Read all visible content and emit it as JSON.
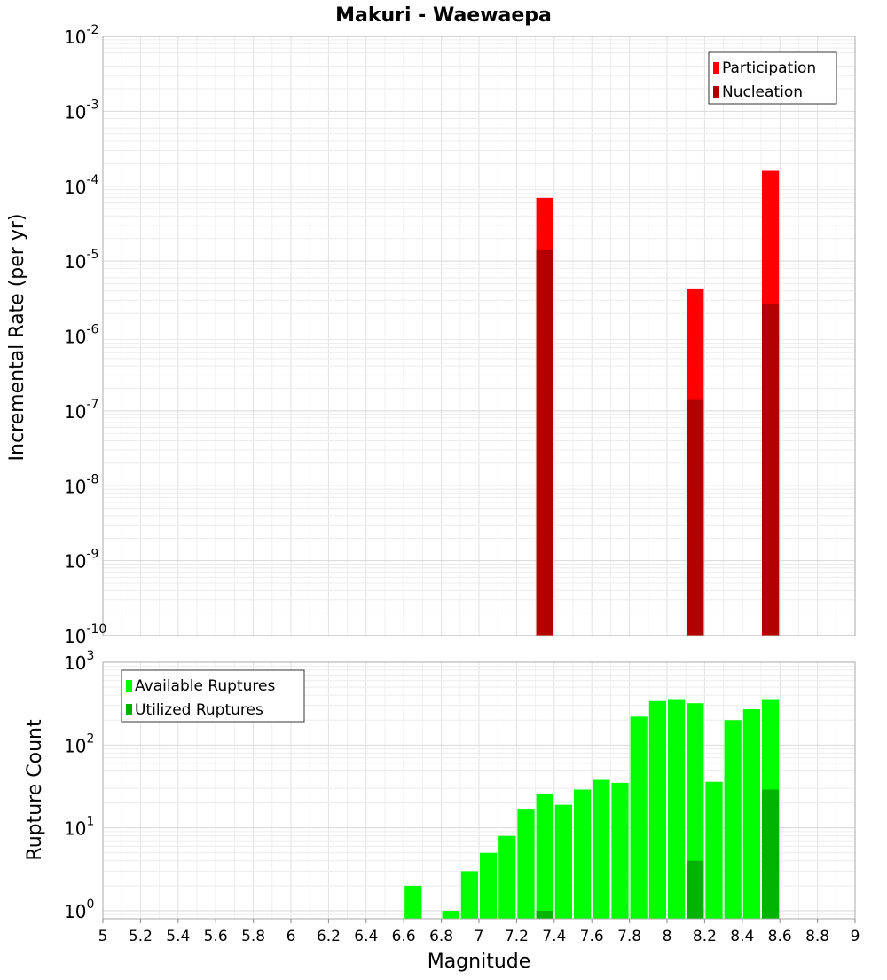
{
  "chart_data": [
    {
      "type": "bar",
      "title": "Makuri - Waewaepa",
      "xlabel": "",
      "ylabel": "Incremental Rate (per yr)",
      "y_scale": "log",
      "ylim": [
        1e-10,
        0.01
      ],
      "xlim": [
        5,
        9
      ],
      "y_tick_exponents": [
        "-2",
        "-3",
        "-4",
        "-5",
        "-6",
        "-7",
        "-8",
        "-9",
        "-10"
      ],
      "legend_position": "top-right",
      "grid": true,
      "colors": {
        "participation": "#ff0000",
        "nucleation": "#b30000"
      },
      "series": [
        {
          "name": "Participation",
          "x": [
            7.35,
            8.15,
            8.55
          ],
          "values": [
            7e-05,
            4.2e-06,
            0.00016
          ]
        },
        {
          "name": "Nucleation",
          "x": [
            7.35,
            8.15,
            8.55
          ],
          "values": [
            1.4e-05,
            1.4e-07,
            2.7e-06
          ]
        }
      ]
    },
    {
      "type": "bar",
      "title": "",
      "xlabel": "Magnitude",
      "ylabel": "Rupture Count",
      "y_scale": "log",
      "ylim": [
        0.8,
        1000
      ],
      "xlim": [
        5,
        9
      ],
      "y_tick_exponents": [
        "3",
        "2",
        "1",
        "0"
      ],
      "x_ticks": [
        "5",
        "5.2",
        "5.4",
        "5.6",
        "5.8",
        "6",
        "6.2",
        "6.4",
        "6.6",
        "6.8",
        "7",
        "7.2",
        "7.4",
        "7.6",
        "7.8",
        "8",
        "8.2",
        "8.4",
        "8.6",
        "8.8",
        "9"
      ],
      "legend_position": "top-left",
      "grid": true,
      "colors": {
        "available": "#00ff00",
        "utilized": "#00b300"
      },
      "series": [
        {
          "name": "Available Ruptures",
          "x": [
            6.65,
            6.85,
            6.95,
            7.05,
            7.15,
            7.25,
            7.35,
            7.45,
            7.55,
            7.65,
            7.75,
            7.85,
            7.95,
            8.05,
            8.15,
            8.25,
            8.35,
            8.45,
            8.55
          ],
          "values": [
            2,
            1,
            3,
            5,
            8,
            17,
            26,
            19,
            29,
            38,
            35,
            220,
            340,
            350,
            320,
            36,
            200,
            270,
            350
          ]
        },
        {
          "name": "Utilized Ruptures",
          "x": [
            7.35,
            8.15,
            8.55
          ],
          "values": [
            1,
            4,
            29
          ]
        }
      ]
    }
  ]
}
